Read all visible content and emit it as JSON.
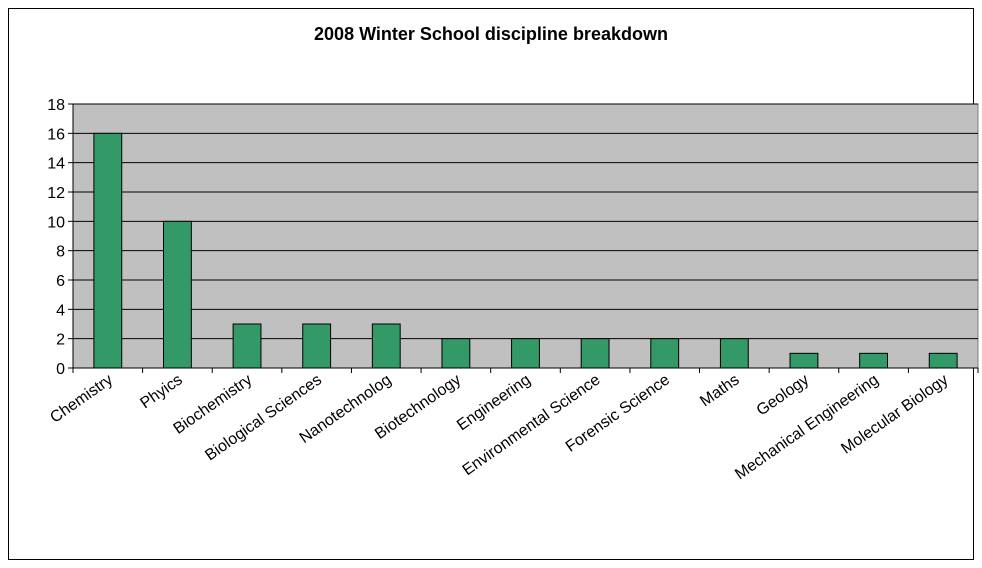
{
  "chart_data": {
    "type": "bar",
    "title": "2008 Winter School discipline breakdown",
    "xlabel": "",
    "ylabel": "",
    "ylim": [
      0,
      18
    ],
    "yticks": [
      0,
      2,
      4,
      6,
      8,
      10,
      12,
      14,
      16,
      18
    ],
    "grid": true,
    "categories": [
      "Chemistry",
      "Phyics",
      "Biochemistry",
      "Biological Sciences",
      "Nanotechnolog",
      "Biotechnology",
      "Engineering",
      "Environmental Science",
      "Forensic Science",
      "Maths",
      "Geology",
      "Mechanical Engineering",
      "Molecular Biology"
    ],
    "values": [
      16,
      10,
      3,
      3,
      3,
      2,
      2,
      2,
      2,
      2,
      1,
      1,
      1
    ],
    "colors": {
      "bar": "#339966",
      "plot_background": "#c0c0c0",
      "gridline": "#000000"
    }
  }
}
